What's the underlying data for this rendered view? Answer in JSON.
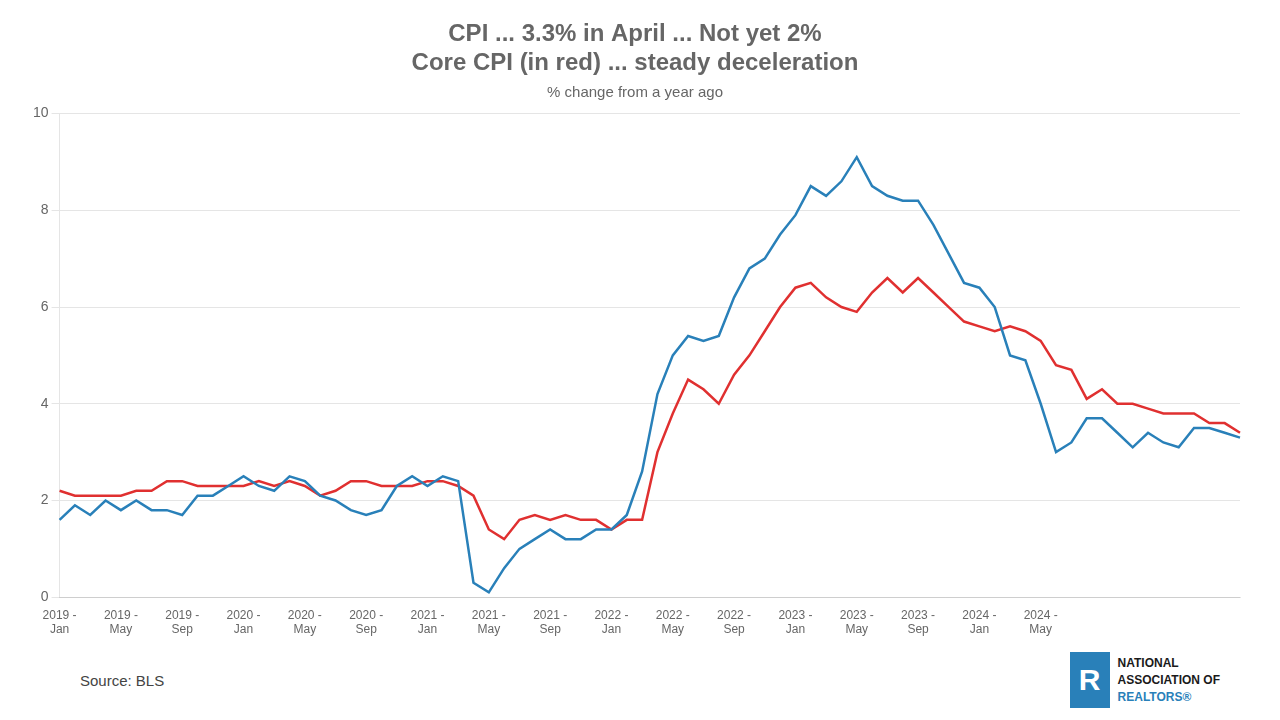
{
  "chart_data": {
    "type": "line",
    "title": [
      "CPI ... 3.3% in April ... Not yet 2%",
      "Core CPI (in red) ... steady deceleration"
    ],
    "subtitle": "% change from a year ago",
    "annotations": [
      "Source: BLS",
      "R",
      "NATIONAL",
      "ASSOCIATION OF",
      "REALTORS®"
    ],
    "categories": [
      [
        "2019 -",
        "Jan"
      ],
      null,
      null,
      null,
      [
        "2019 -",
        "May"
      ],
      null,
      null,
      null,
      [
        "2019 -",
        "Sep"
      ],
      null,
      null,
      null,
      [
        "2020 -",
        "Jan"
      ],
      null,
      null,
      null,
      [
        "2020 -",
        "May"
      ],
      null,
      null,
      null,
      [
        "2020 -",
        "Sep"
      ],
      null,
      null,
      null,
      [
        "2021 -",
        "Jan"
      ],
      null,
      null,
      null,
      [
        "2021 -",
        "May"
      ],
      null,
      null,
      null,
      [
        "2021 -",
        "Sep"
      ],
      null,
      null,
      null,
      [
        "2022 -",
        "Jan"
      ],
      null,
      null,
      null,
      [
        "2022 -",
        "May"
      ],
      null,
      null,
      null,
      [
        "2022 -",
        "Sep"
      ],
      null,
      null,
      null,
      [
        "2023 -",
        "Jan"
      ],
      null,
      null,
      null,
      [
        "2023 -",
        "May"
      ],
      null,
      null,
      null,
      [
        "2023 -",
        "Sep"
      ],
      null,
      null,
      null,
      [
        "2024 -",
        "Jan"
      ],
      null,
      null,
      null,
      [
        "2024 -",
        "May"
      ],
      null,
      null,
      null,
      null,
      null,
      null,
      null,
      null,
      null,
      null,
      null,
      null,
      null
    ],
    "series": [
      {
        "color": "#2980b9",
        "values": [
          1.6,
          1.9,
          1.7,
          2.0,
          1.8,
          2.0,
          1.8,
          1.8,
          1.7,
          2.1,
          2.1,
          2.3,
          2.5,
          2.3,
          2.2,
          2.5,
          2.4,
          2.1,
          2.0,
          1.8,
          1.7,
          1.8,
          2.3,
          2.5,
          2.3,
          2.5,
          2.4,
          0.3,
          0.1,
          0.6,
          1.0,
          1.2,
          1.4,
          1.2,
          1.2,
          1.4,
          1.4,
          1.7,
          2.6,
          4.2,
          5.0,
          5.4,
          5.3,
          5.4,
          6.2,
          6.8,
          7.0,
          7.5,
          7.9,
          8.5,
          8.3,
          8.6,
          9.1,
          8.5,
          8.3,
          8.2,
          8.2,
          7.7,
          7.1,
          6.5,
          6.4,
          6.0,
          5.0,
          4.9,
          4.0,
          3.0,
          3.2,
          3.7,
          3.7,
          3.4,
          3.1,
          3.4,
          3.2,
          3.1,
          3.5,
          3.5,
          3.4,
          3.3
        ]
      },
      {
        "color": "#e03030",
        "values": [
          2.2,
          2.1,
          2.1,
          2.1,
          2.1,
          2.2,
          2.2,
          2.4,
          2.4,
          2.3,
          2.3,
          2.3,
          2.3,
          2.4,
          2.3,
          2.4,
          2.3,
          2.1,
          2.2,
          2.4,
          2.4,
          2.3,
          2.3,
          2.3,
          2.4,
          2.4,
          2.3,
          2.1,
          1.4,
          1.2,
          1.6,
          1.7,
          1.6,
          1.7,
          1.6,
          1.6,
          1.4,
          1.6,
          1.6,
          3.0,
          3.8,
          4.5,
          4.3,
          4.0,
          4.6,
          5.0,
          5.5,
          6.0,
          6.4,
          6.5,
          6.2,
          6.0,
          5.9,
          6.3,
          6.6,
          6.3,
          6.6,
          6.3,
          6.0,
          5.7,
          5.6,
          5.5,
          5.6,
          5.5,
          5.3,
          4.8,
          4.7,
          4.1,
          4.3,
          4.0,
          4.0,
          3.9,
          3.8,
          3.8,
          3.8,
          3.6,
          3.6,
          3.4
        ]
      }
    ],
    "ylim": [
      0,
      10
    ],
    "yticks": [
      0,
      2,
      4,
      6,
      8,
      10
    ],
    "grid": true
  }
}
